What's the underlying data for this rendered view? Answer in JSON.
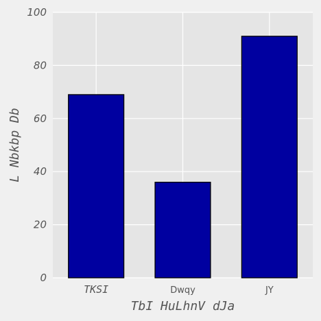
{
  "chart_data": {
    "type": "bar",
    "categories": [
      "TKSI",
      "Dwqy",
      "JY"
    ],
    "values": [
      69,
      36,
      91
    ],
    "xlabel": "TbI HuLhnV dJa",
    "ylabel": "L Nbkbp Db",
    "ylim": [
      0,
      100
    ],
    "yticks": [
      0,
      20,
      40,
      60,
      80,
      100
    ],
    "grid": true,
    "colors": {
      "bar_fill": "#0000a0",
      "bar_edge": "#000000",
      "plot_background": "#e5e5e5",
      "figure_background": "#f0f0f0",
      "grid": "#ffffff",
      "text": "#555555"
    }
  }
}
